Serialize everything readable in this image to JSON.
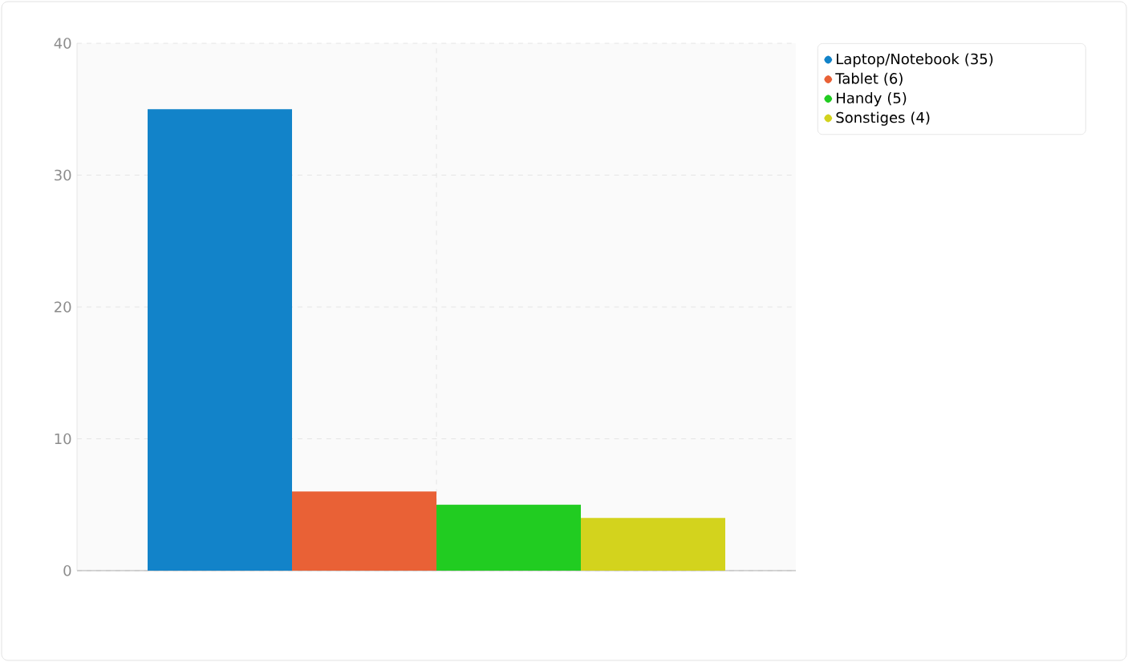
{
  "chart_data": {
    "type": "bar",
    "categories": [
      null
    ],
    "series": [
      {
        "name": "Laptop/Notebook (35)",
        "color": "#1283c9",
        "values": [
          35
        ]
      },
      {
        "name": "Tablet (6)",
        "color": "#e96136",
        "values": [
          6
        ]
      },
      {
        "name": "Handy (5)",
        "color": "#21cc21",
        "values": [
          5
        ]
      },
      {
        "name": "Sonstiges (4)",
        "color": "#d3d31d",
        "values": [
          4
        ]
      }
    ],
    "ylim": [
      0,
      40
    ],
    "yticks": [
      0,
      10,
      20,
      30,
      40
    ],
    "grid": true,
    "legend": "top right"
  }
}
